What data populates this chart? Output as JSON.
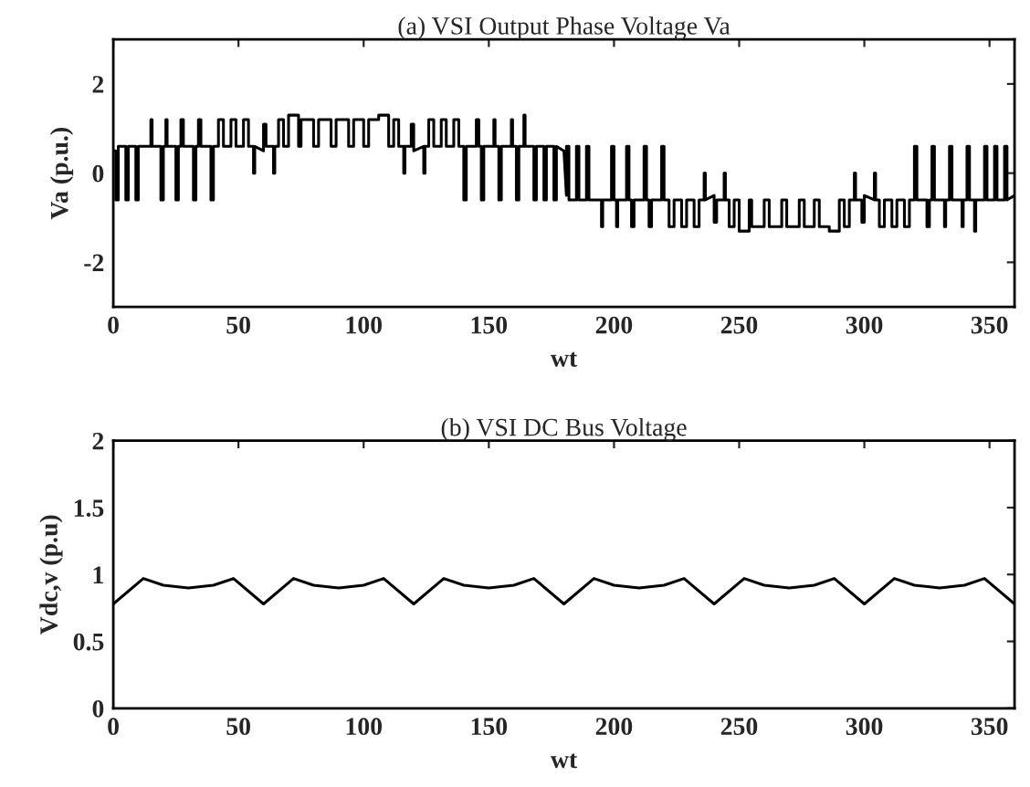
{
  "chart_data": [
    {
      "type": "line",
      "title": "(a) VSI Output Phase Voltage Va",
      "xlabel": "wt",
      "ylabel": "Va (p.u.)",
      "xlim": [
        0,
        360
      ],
      "ylim": [
        -3,
        3
      ],
      "xticks": [
        0,
        50,
        100,
        150,
        200,
        250,
        300,
        350
      ],
      "yticks": [
        -2,
        0,
        2
      ],
      "grid": false,
      "legend": false,
      "series": [
        {
          "color": "#000000",
          "x": [
            0,
            1,
            1,
            2,
            2,
            5,
            5,
            6,
            6,
            9,
            9,
            10,
            10,
            15,
            15,
            15.5,
            15.5,
            19,
            19,
            20,
            20,
            21,
            21,
            21.5,
            21.5,
            25,
            25,
            26,
            26,
            27,
            27,
            28,
            28,
            32,
            32,
            33,
            33,
            34,
            34,
            35,
            35,
            39,
            39,
            40,
            40,
            42,
            42,
            44,
            44,
            47,
            47,
            49,
            49,
            52,
            52,
            54,
            54,
            56,
            56,
            56.5,
            56.5,
            60,
            60,
            61,
            61,
            64,
            64,
            64.5,
            64.5,
            66,
            66,
            68,
            68,
            70,
            70,
            74,
            74,
            75,
            75,
            80,
            80,
            82,
            82,
            87,
            87,
            89,
            89,
            94,
            94,
            96,
            96,
            100,
            100,
            102,
            102,
            106,
            106,
            110,
            110,
            112,
            112,
            114,
            114,
            116,
            116,
            116.5,
            116.5,
            119,
            119,
            120,
            120,
            124,
            124,
            124.5,
            124.5,
            126,
            126,
            128,
            128,
            131,
            131,
            133,
            133,
            136,
            136,
            138,
            138,
            140,
            140,
            141,
            141,
            145,
            145,
            146,
            146,
            147,
            147,
            148,
            148,
            152,
            152,
            152.5,
            152.5,
            154,
            154,
            155,
            155,
            159,
            159,
            159.5,
            159.5,
            161,
            161,
            162,
            162,
            164,
            164,
            164.5,
            164.5,
            168,
            168,
            169,
            169,
            172,
            172,
            173,
            173,
            176,
            176,
            177,
            177,
            180,
            181,
            181,
            182,
            182,
            185,
            185,
            186,
            186,
            189,
            189,
            190,
            190,
            195,
            195,
            195.5,
            195.5,
            199,
            199,
            200,
            200,
            201,
            201,
            201.5,
            201.5,
            205,
            205,
            206,
            206,
            207,
            207,
            208,
            208,
            212,
            212,
            213,
            213,
            214,
            214,
            215,
            215,
            219,
            219,
            220,
            220,
            222,
            222,
            224,
            224,
            227,
            227,
            229,
            229,
            232,
            232,
            234,
            234,
            236,
            236,
            236.5,
            236.5,
            240,
            240,
            241,
            241,
            244,
            244,
            244.5,
            244.5,
            246,
            246,
            248,
            248,
            250,
            250,
            254,
            254,
            255,
            255,
            260,
            260,
            262,
            262,
            267,
            267,
            269,
            269,
            274,
            274,
            276,
            276,
            280,
            280,
            282,
            282,
            286,
            286,
            290,
            290,
            292,
            292,
            294,
            294,
            296,
            296,
            296.5,
            296.5,
            299,
            299,
            300,
            300,
            304,
            304,
            304.5,
            304.5,
            306,
            306,
            308,
            308,
            311,
            311,
            313,
            313,
            316,
            316,
            318,
            318,
            320,
            320,
            321,
            321,
            325,
            325,
            326,
            326,
            327,
            327,
            328,
            328,
            332,
            332,
            332.5,
            332.5,
            334,
            334,
            335,
            335,
            339,
            339,
            339.5,
            339.5,
            341,
            341,
            342,
            342,
            344,
            344,
            344.5,
            344.5,
            348,
            348,
            349,
            349,
            352,
            352,
            353,
            353,
            356,
            356,
            357,
            357,
            360
          ],
          "values": [
            0.5,
            0.5,
            -0.6,
            -0.6,
            0.6,
            0.6,
            -0.6,
            -0.6,
            0.6,
            0.6,
            -0.6,
            -0.6,
            0.6,
            0.6,
            1.2,
            1.2,
            0.6,
            0.6,
            -0.6,
            -0.6,
            0.6,
            0.6,
            1.2,
            1.2,
            0.6,
            0.6,
            -0.6,
            -0.6,
            0.6,
            0.6,
            1.2,
            1.2,
            0.6,
            0.6,
            -0.6,
            -0.6,
            0.6,
            0.6,
            1.2,
            1.2,
            0.6,
            0.6,
            -0.6,
            -0.6,
            0.6,
            0.6,
            1.2,
            1.2,
            0.6,
            0.6,
            1.2,
            1.2,
            0.6,
            0.6,
            1.2,
            1.2,
            0.6,
            0.6,
            0,
            0,
            0.6,
            0.5,
            1.1,
            1.1,
            0.6,
            0.6,
            0,
            0,
            0.6,
            0.6,
            1.2,
            1.2,
            0.6,
            0.6,
            1.3,
            1.3,
            0.6,
            0.6,
            1.2,
            1.2,
            0.6,
            0.6,
            1.2,
            1.2,
            0.6,
            0.6,
            1.2,
            1.2,
            0.6,
            0.6,
            1.2,
            1.2,
            0.6,
            0.6,
            1.2,
            1.2,
            1.3,
            1.3,
            0.6,
            0.6,
            1.2,
            1.2,
            0.6,
            0.6,
            0,
            0,
            0.6,
            0.6,
            1.1,
            1.1,
            0.5,
            0.6,
            0,
            0,
            0.6,
            0.6,
            1.2,
            1.2,
            0.6,
            0.6,
            1.2,
            1.2,
            0.6,
            0.6,
            1.2,
            1.2,
            0.6,
            0.6,
            -0.6,
            -0.6,
            0.6,
            0.6,
            1.2,
            1.2,
            0.6,
            0.6,
            -0.6,
            -0.6,
            0.6,
            0.6,
            1.2,
            1.2,
            0.6,
            0.6,
            -0.6,
            -0.6,
            0.6,
            0.6,
            1.2,
            1.2,
            0.6,
            0.6,
            -0.6,
            -0.6,
            0.6,
            0.6,
            1.3,
            1.3,
            0.6,
            0.6,
            -0.6,
            -0.6,
            0.6,
            0.6,
            -0.6,
            -0.6,
            0.6,
            0.6,
            -0.6,
            -0.6,
            0.6,
            0.5,
            -0.5,
            0.6,
            0.6,
            -0.6,
            -0.6,
            0.6,
            0.6,
            -0.6,
            -0.6,
            0.6,
            0.6,
            -0.6,
            -0.6,
            -1.2,
            -1.2,
            -0.6,
            -0.6,
            0.6,
            0.6,
            -0.6,
            -0.6,
            -1.2,
            -1.2,
            -0.6,
            -0.6,
            0.6,
            0.6,
            -0.6,
            -0.6,
            -1.2,
            -1.2,
            -0.6,
            -0.6,
            0.6,
            0.6,
            -0.6,
            -0.6,
            -1.2,
            -1.2,
            -0.6,
            -0.6,
            0.6,
            0.6,
            -0.6,
            -0.6,
            -1.2,
            -1.2,
            -0.6,
            -0.6,
            -1.2,
            -1.2,
            -0.6,
            -0.6,
            -1.2,
            -1.2,
            -0.6,
            -0.6,
            0,
            0,
            -0.6,
            -0.5,
            -1.1,
            -1.1,
            -0.6,
            -0.6,
            0,
            0,
            -0.6,
            -0.6,
            -1.2,
            -1.2,
            -0.6,
            -0.6,
            -1.3,
            -1.3,
            -0.6,
            -0.6,
            -1.2,
            -1.2,
            -0.6,
            -0.6,
            -1.2,
            -1.2,
            -0.6,
            -0.6,
            -1.2,
            -1.2,
            -0.6,
            -0.6,
            -1.2,
            -1.2,
            -0.6,
            -0.6,
            -1.2,
            -1.2,
            -1.3,
            -1.3,
            -0.6,
            -0.6,
            -1.2,
            -1.2,
            -0.6,
            -0.6,
            0,
            0,
            -0.6,
            -0.6,
            -1.1,
            -1.1,
            -0.5,
            -0.6,
            0,
            0,
            -0.6,
            -0.6,
            -1.2,
            -1.2,
            -0.6,
            -0.6,
            -1.2,
            -1.2,
            -0.6,
            -0.6,
            -1.2,
            -1.2,
            -0.6,
            -0.6,
            0.6,
            0.6,
            -0.6,
            -0.6,
            -1.2,
            -1.2,
            -0.6,
            -0.6,
            0.6,
            0.6,
            -0.6,
            -0.6,
            -1.2,
            -1.2,
            -0.6,
            -0.6,
            0.6,
            0.6,
            -0.6,
            -0.6,
            -1.2,
            -1.2,
            -0.6,
            -0.6,
            0.6,
            0.6,
            -0.6,
            -0.6,
            -1.3,
            -1.3,
            -0.6,
            -0.6,
            0.6,
            0.6,
            -0.6,
            -0.6,
            0.6,
            0.6,
            -0.6,
            -0.6,
            0.6,
            0.6,
            -0.6,
            -0.5
          ]
        }
      ]
    },
    {
      "type": "line",
      "title": "(b) VSI DC Bus Voltage",
      "xlabel": "wt",
      "ylabel": "Vdc,v (p.u)",
      "xlim": [
        0,
        360
      ],
      "ylim": [
        0,
        2
      ],
      "xticks": [
        0,
        50,
        100,
        150,
        200,
        250,
        300,
        350
      ],
      "yticks": [
        0,
        0.5,
        1,
        1.5,
        2
      ],
      "grid": false,
      "legend": false,
      "series": [
        {
          "color": "#000000",
          "x": [
            0,
            12,
            20,
            30,
            40,
            48,
            60,
            72,
            80,
            90,
            100,
            108,
            120,
            132,
            140,
            150,
            160,
            168,
            180,
            192,
            200,
            210,
            220,
            228,
            240,
            252,
            260,
            270,
            280,
            288,
            300,
            312,
            320,
            330,
            340,
            348,
            360
          ],
          "values": [
            0.78,
            0.97,
            0.92,
            0.9,
            0.92,
            0.97,
            0.78,
            0.97,
            0.92,
            0.9,
            0.92,
            0.97,
            0.78,
            0.97,
            0.92,
            0.9,
            0.92,
            0.97,
            0.78,
            0.97,
            0.92,
            0.9,
            0.92,
            0.97,
            0.78,
            0.97,
            0.92,
            0.9,
            0.92,
            0.97,
            0.78,
            0.97,
            0.92,
            0.9,
            0.92,
            0.97,
            0.78
          ]
        }
      ]
    }
  ]
}
